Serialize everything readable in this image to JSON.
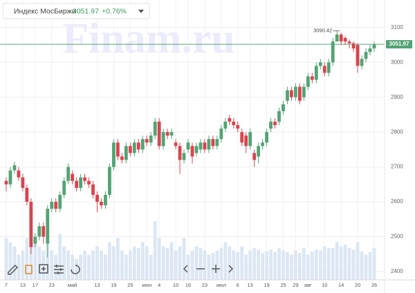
{
  "chart_data": {
    "type": "candlestick",
    "title": "Индекс МосБиржи",
    "change": "+0.76%",
    "watermark": "Finam.ru",
    "up_color": "#53a374",
    "down_color": "#d9444f",
    "volume_color": "#dce7f3",
    "grid": true,
    "categories": [
      "7",
      null,
      null,
      null,
      "13",
      null,
      null,
      "17",
      null,
      null,
      null,
      "23",
      null,
      null,
      null,
      null,
      "май",
      null,
      null,
      null,
      null,
      null,
      "13",
      null,
      null,
      null,
      "19",
      null,
      null,
      null,
      "25",
      null,
      null,
      null,
      "июн",
      null,
      null,
      "4",
      null,
      null,
      null,
      "10",
      null,
      null,
      "16",
      null,
      null,
      null,
      "23",
      null,
      null,
      null,
      "июл",
      null,
      null,
      null,
      "6",
      null,
      null,
      "13",
      null,
      null,
      null,
      "19",
      null,
      null,
      null,
      "25",
      null,
      null,
      "29",
      null,
      null,
      "авг",
      null,
      null,
      null,
      "10",
      null,
      null,
      null,
      "14",
      null,
      null,
      null,
      "20",
      null,
      null,
      null,
      "26"
    ],
    "open": [
      2660,
      2650,
      2690,
      2690,
      2670,
      2640,
      2600,
      2480,
      2500,
      2530,
      2480,
      2580,
      2600,
      2580,
      2620,
      2660,
      2680,
      2660,
      2640,
      2670,
      2660,
      2650,
      2620,
      2600,
      2590,
      2620,
      2700,
      2770,
      2730,
      2720,
      2760,
      2740,
      2770,
      2750,
      2780,
      2770,
      2790,
      2830,
      2760,
      2800,
      2790,
      2770,
      2760,
      2720,
      2750,
      2760,
      2740,
      2750,
      2770,
      2750,
      2780,
      2760,
      2780,
      2810,
      2840,
      2830,
      2820,
      2800,
      2790,
      2760,
      2740,
      2730,
      2760,
      2770,
      2810,
      2830,
      2830,
      2860,
      2890,
      2920,
      2900,
      2930,
      2900,
      2930,
      2960,
      2950,
      2990,
      2990,
      2970,
      3000,
      3060,
      3080,
      3070,
      3060,
      3055,
      3050,
      2990,
      3010,
      3030,
      3040
    ],
    "high": [
      2670,
      2700,
      2715,
      2700,
      2680,
      2650,
      2610,
      2510,
      2540,
      2540,
      2590,
      2610,
      2610,
      2630,
      2670,
      2710,
      2690,
      2670,
      2680,
      2680,
      2670,
      2660,
      2630,
      2610,
      2630,
      2710,
      2780,
      2780,
      2740,
      2770,
      2770,
      2780,
      2780,
      2790,
      2790,
      2800,
      2840,
      2840,
      2810,
      2810,
      2810,
      2780,
      2770,
      2750,
      2780,
      2770,
      2770,
      2780,
      2780,
      2790,
      2790,
      2790,
      2820,
      2840,
      2850,
      2840,
      2830,
      2810,
      2800,
      2810,
      2750,
      2770,
      2780,
      2810,
      2840,
      2840,
      2870,
      2890,
      2930,
      2930,
      2940,
      2940,
      2940,
      2970,
      2970,
      3000,
      3010,
      3000,
      3010,
      3070,
      3090.42,
      3085,
      3075,
      3065,
      3060,
      3055,
      3020,
      3040,
      3050,
      3060
    ],
    "low": [
      2630,
      2640,
      2680,
      2660,
      2630,
      2590,
      2450,
      2470,
      2490,
      2480,
      2440,
      2570,
      2570,
      2570,
      2610,
      2650,
      2650,
      2630,
      2630,
      2650,
      2640,
      2610,
      2570,
      2580,
      2580,
      2610,
      2690,
      2720,
      2710,
      2710,
      2730,
      2730,
      2740,
      2740,
      2760,
      2760,
      2780,
      2750,
      2750,
      2780,
      2780,
      2750,
      2680,
      2710,
      2740,
      2710,
      2730,
      2740,
      2740,
      2740,
      2750,
      2750,
      2770,
      2800,
      2820,
      2810,
      2800,
      2760,
      2740,
      2750,
      2700,
      2710,
      2750,
      2760,
      2800,
      2810,
      2820,
      2850,
      2880,
      2890,
      2890,
      2880,
      2890,
      2920,
      2940,
      2940,
      2980,
      2960,
      2960,
      2990,
      3060,
      3050,
      3050,
      3040,
      3030,
      2970,
      2980,
      3000,
      3020,
      3030
    ],
    "close": [
      2650,
      2690,
      2705,
      2670,
      2640,
      2600,
      2470,
      2500,
      2530,
      2500,
      2580,
      2600,
      2580,
      2620,
      2660,
      2700,
      2660,
      2640,
      2670,
      2660,
      2650,
      2620,
      2600,
      2590,
      2620,
      2700,
      2770,
      2730,
      2720,
      2760,
      2740,
      2770,
      2750,
      2780,
      2770,
      2790,
      2830,
      2760,
      2800,
      2790,
      2800,
      2760,
      2720,
      2740,
      2770,
      2730,
      2760,
      2770,
      2750,
      2780,
      2760,
      2780,
      2810,
      2830,
      2830,
      2820,
      2810,
      2770,
      2760,
      2800,
      2720,
      2760,
      2770,
      2800,
      2830,
      2820,
      2860,
      2880,
      2920,
      2900,
      2930,
      2890,
      2930,
      2960,
      2950,
      2990,
      3000,
      2970,
      3000,
      3060,
      3080,
      3060,
      3060,
      3055,
      3040,
      2990,
      3010,
      3030,
      3040,
      3051.97
    ],
    "volume": [
      50,
      45,
      40,
      30,
      35,
      50,
      60,
      45,
      40,
      35,
      70,
      35,
      30,
      55,
      40,
      35,
      30,
      25,
      30,
      35,
      30,
      35,
      40,
      35,
      30,
      45,
      40,
      50,
      35,
      30,
      35,
      40,
      38,
      45,
      40,
      30,
      70,
      50,
      40,
      38,
      45,
      35,
      40,
      50,
      30,
      35,
      40,
      38,
      35,
      30,
      32,
      35,
      38,
      45,
      40,
      35,
      33,
      40,
      30,
      35,
      38,
      36,
      32,
      34,
      36,
      33,
      38,
      35,
      33,
      30,
      35,
      32,
      38,
      30,
      34,
      36,
      35,
      40,
      38,
      38,
      45,
      40,
      42,
      38,
      36,
      45,
      34,
      30,
      33,
      38
    ],
    "ylim": [
      2376,
      3179
    ],
    "yticks": [
      2400,
      2500,
      2600,
      2700,
      2800,
      2900,
      3000,
      3100
    ]
  }
}
